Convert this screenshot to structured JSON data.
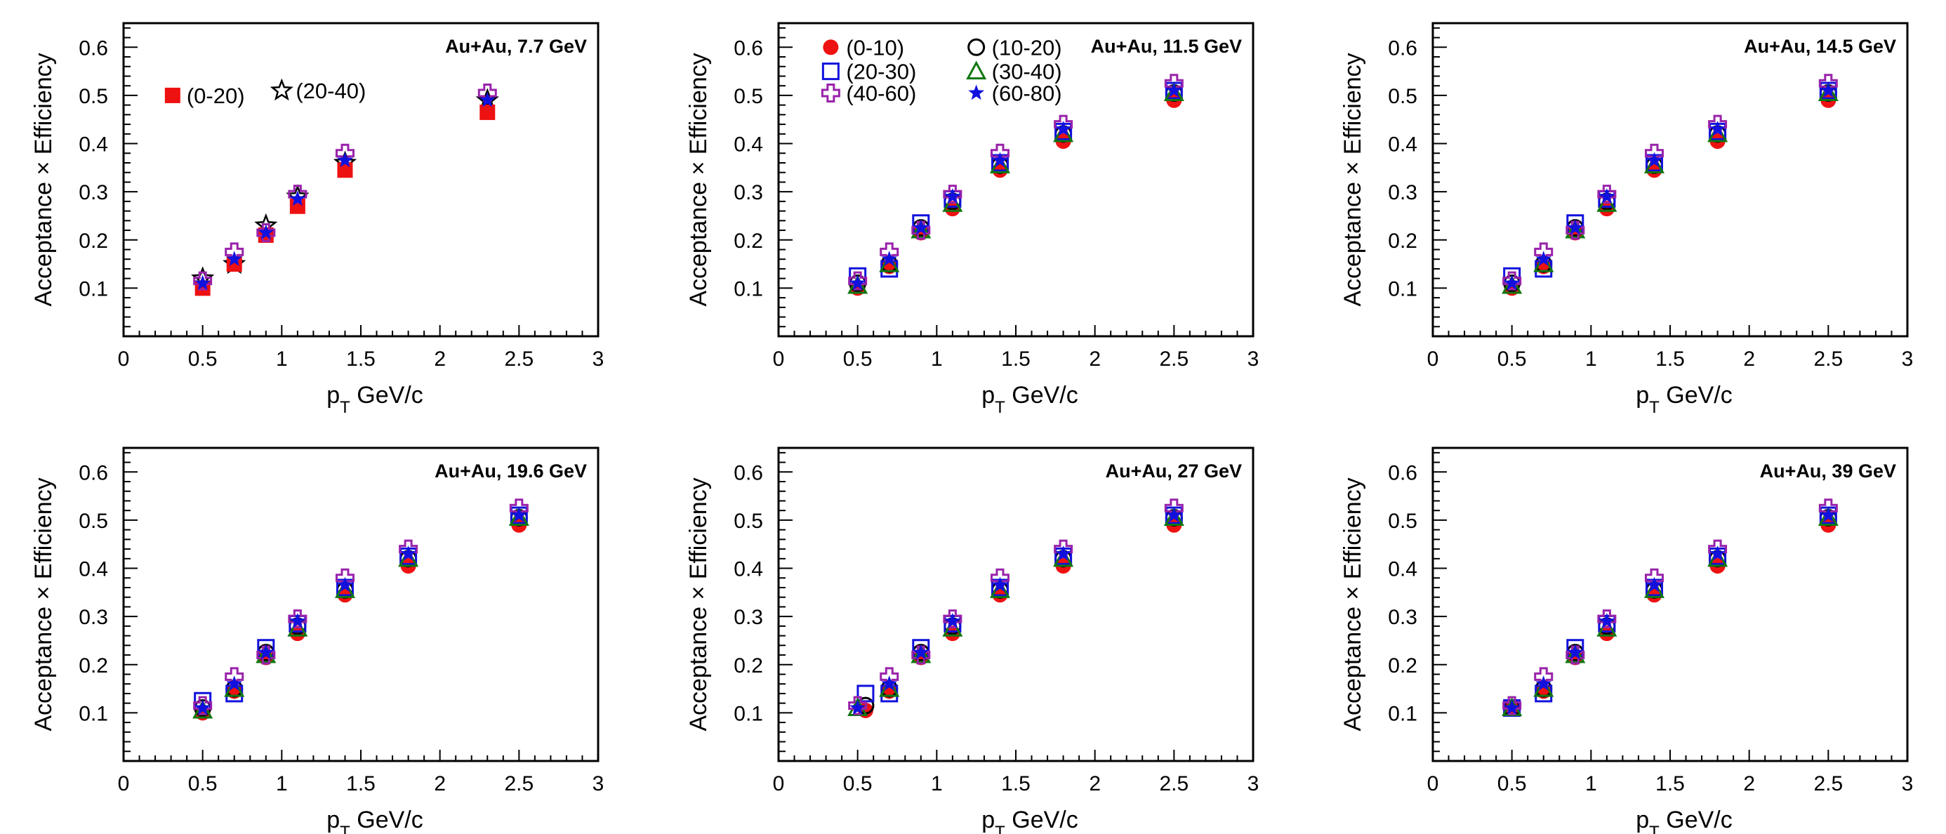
{
  "styles": {
    "0-20": {
      "shape": "square-filled",
      "color": "#ee1111"
    },
    "20-40": {
      "shape": "star-open",
      "color": "#000000"
    },
    "0-10": {
      "shape": "circle-filled",
      "color": "#ee1111"
    },
    "10-20": {
      "shape": "circle-open",
      "color": "#000000"
    },
    "20-30": {
      "shape": "square-open",
      "color": "#1111dd"
    },
    "30-40": {
      "shape": "triangle-open",
      "color": "#117711"
    },
    "40-60": {
      "shape": "cross-open",
      "color": "#9922aa"
    },
    "60-80": {
      "shape": "star-filled",
      "color": "#1111dd"
    }
  },
  "chart_data": [
    {
      "type": "scatter",
      "annotation": "Au+Au, 7.7 GeV",
      "xlabel": "p",
      "xlabel_sub": "T",
      "xlabel_unit": " GeV/c",
      "ylabel": "Acceptance × Efficiency",
      "xlim": [
        0,
        3
      ],
      "ylim": [
        0,
        0.65
      ],
      "xticks": [
        "0",
        "0.5",
        "1",
        "1.5",
        "2",
        "2.5",
        "3"
      ],
      "yticks": [
        "0.1",
        "0.2",
        "0.3",
        "0.4",
        "0.5",
        "0.6"
      ],
      "legend": [
        {
          "name": "(0-20)",
          "key": "0-20"
        },
        {
          "name": "(20-40)",
          "key": "20-40"
        }
      ],
      "series": [
        {
          "key": "20-40",
          "x": [
            0.5,
            0.7,
            0.9,
            1.1,
            1.4,
            2.3
          ],
          "y": [
            0.12,
            0.15,
            0.23,
            0.29,
            0.36,
            0.49
          ]
        },
        {
          "key": "0-20",
          "x": [
            0.5,
            0.7,
            0.9,
            1.1,
            1.4,
            2.3
          ],
          "y": [
            0.1,
            0.15,
            0.21,
            0.27,
            0.345,
            0.465
          ]
        },
        {
          "key": "40-60",
          "x": [
            0.5,
            0.7,
            0.9,
            1.1,
            1.4,
            2.3
          ],
          "y": [
            0.115,
            0.175,
            0.215,
            0.295,
            0.38,
            0.505
          ]
        },
        {
          "key": "60-80",
          "x": [
            0.5,
            0.7,
            0.9,
            1.1,
            1.4,
            2.3
          ],
          "y": [
            0.11,
            0.16,
            0.215,
            0.285,
            0.365,
            0.49
          ]
        }
      ]
    },
    {
      "type": "scatter",
      "annotation": "Au+Au, 11.5 GeV",
      "xlabel": "p",
      "xlabel_sub": "T",
      "xlabel_unit": " GeV/c",
      "ylabel": "Acceptance × Efficiency",
      "xlim": [
        0,
        3
      ],
      "ylim": [
        0,
        0.65
      ],
      "xticks": [
        "0",
        "0.5",
        "1",
        "1.5",
        "2",
        "2.5",
        "3"
      ],
      "yticks": [
        "0.1",
        "0.2",
        "0.3",
        "0.4",
        "0.5",
        "0.6"
      ],
      "legend": [
        {
          "name": "(0-10)",
          "key": "0-10"
        },
        {
          "name": "(10-20)",
          "key": "10-20"
        },
        {
          "name": "(20-30)",
          "key": "20-30"
        },
        {
          "name": "(30-40)",
          "key": "30-40"
        },
        {
          "name": "(40-60)",
          "key": "40-60"
        },
        {
          "name": "(60-80)",
          "key": "60-80"
        }
      ],
      "series": [
        {
          "key": "0-10",
          "x": [
            0.5,
            0.7,
            0.9,
            1.1,
            1.4,
            1.8,
            2.5
          ],
          "y": [
            0.1,
            0.145,
            0.215,
            0.265,
            0.345,
            0.405,
            0.49
          ]
        },
        {
          "key": "10-20",
          "x": [
            0.5,
            0.7,
            0.9,
            1.1,
            1.4,
            1.8,
            2.5
          ],
          "y": [
            0.11,
            0.15,
            0.225,
            0.28,
            0.355,
            0.42,
            0.505
          ]
        },
        {
          "key": "20-30",
          "x": [
            0.5,
            0.7,
            0.9,
            1.1,
            1.4,
            1.8,
            2.5
          ],
          "y": [
            0.125,
            0.14,
            0.235,
            0.285,
            0.36,
            0.425,
            0.51
          ]
        },
        {
          "key": "30-40",
          "x": [
            0.5,
            0.7,
            0.9,
            1.1,
            1.4,
            1.8,
            2.5
          ],
          "y": [
            0.105,
            0.15,
            0.22,
            0.275,
            0.355,
            0.42,
            0.505
          ]
        },
        {
          "key": "40-60",
          "x": [
            0.5,
            0.7,
            0.9,
            1.1,
            1.4,
            1.8,
            2.5
          ],
          "y": [
            0.115,
            0.175,
            0.22,
            0.295,
            0.38,
            0.44,
            0.525
          ]
        },
        {
          "key": "60-80",
          "x": [
            0.5,
            0.7,
            0.9,
            1.1,
            1.4,
            1.8,
            2.5
          ],
          "y": [
            0.11,
            0.16,
            0.225,
            0.29,
            0.365,
            0.43,
            0.51
          ]
        }
      ]
    },
    {
      "type": "scatter",
      "annotation": "Au+Au, 14.5 GeV",
      "xlabel": "p",
      "xlabel_sub": "T",
      "xlabel_unit": " GeV/c",
      "ylabel": "Acceptance × Efficiency",
      "xlim": [
        0,
        3
      ],
      "ylim": [
        0,
        0.65
      ],
      "xticks": [
        "0",
        "0.5",
        "1",
        "1.5",
        "2",
        "2.5",
        "3"
      ],
      "yticks": [
        "0.1",
        "0.2",
        "0.3",
        "0.4",
        "0.5",
        "0.6"
      ],
      "legend": [],
      "series": [
        {
          "key": "0-10",
          "x": [
            0.5,
            0.7,
            0.9,
            1.1,
            1.4,
            1.8,
            2.5
          ],
          "y": [
            0.1,
            0.145,
            0.215,
            0.265,
            0.345,
            0.405,
            0.49
          ]
        },
        {
          "key": "10-20",
          "x": [
            0.5,
            0.7,
            0.9,
            1.1,
            1.4,
            1.8,
            2.5
          ],
          "y": [
            0.11,
            0.15,
            0.225,
            0.28,
            0.355,
            0.42,
            0.505
          ]
        },
        {
          "key": "20-30",
          "x": [
            0.5,
            0.7,
            0.9,
            1.1,
            1.4,
            1.8,
            2.5
          ],
          "y": [
            0.125,
            0.14,
            0.235,
            0.285,
            0.36,
            0.425,
            0.51
          ]
        },
        {
          "key": "30-40",
          "x": [
            0.5,
            0.7,
            0.9,
            1.1,
            1.4,
            1.8,
            2.5
          ],
          "y": [
            0.105,
            0.15,
            0.22,
            0.275,
            0.355,
            0.42,
            0.505
          ]
        },
        {
          "key": "40-60",
          "x": [
            0.5,
            0.7,
            0.9,
            1.1,
            1.4,
            1.8,
            2.5
          ],
          "y": [
            0.115,
            0.175,
            0.22,
            0.295,
            0.38,
            0.44,
            0.525
          ]
        },
        {
          "key": "60-80",
          "x": [
            0.5,
            0.7,
            0.9,
            1.1,
            1.4,
            1.8,
            2.5
          ],
          "y": [
            0.11,
            0.16,
            0.225,
            0.29,
            0.365,
            0.43,
            0.51
          ]
        }
      ]
    },
    {
      "type": "scatter",
      "annotation": "Au+Au, 19.6 GeV",
      "xlabel": "p",
      "xlabel_sub": "T",
      "xlabel_unit": " GeV/c",
      "ylabel": "Acceptance × Efficiency",
      "xlim": [
        0,
        3
      ],
      "ylim": [
        0,
        0.65
      ],
      "xticks": [
        "0",
        "0.5",
        "1",
        "1.5",
        "2",
        "2.5",
        "3"
      ],
      "yticks": [
        "0.1",
        "0.2",
        "0.3",
        "0.4",
        "0.5",
        "0.6"
      ],
      "legend": [],
      "series": [
        {
          "key": "0-10",
          "x": [
            0.5,
            0.7,
            0.9,
            1.1,
            1.4,
            1.8,
            2.5
          ],
          "y": [
            0.1,
            0.145,
            0.215,
            0.265,
            0.345,
            0.405,
            0.49
          ]
        },
        {
          "key": "10-20",
          "x": [
            0.5,
            0.7,
            0.9,
            1.1,
            1.4,
            1.8,
            2.5
          ],
          "y": [
            0.11,
            0.15,
            0.225,
            0.28,
            0.355,
            0.42,
            0.505
          ]
        },
        {
          "key": "20-30",
          "x": [
            0.5,
            0.7,
            0.9,
            1.1,
            1.4,
            1.8,
            2.5
          ],
          "y": [
            0.125,
            0.14,
            0.235,
            0.285,
            0.36,
            0.425,
            0.51
          ]
        },
        {
          "key": "30-40",
          "x": [
            0.5,
            0.7,
            0.9,
            1.1,
            1.4,
            1.8,
            2.5
          ],
          "y": [
            0.105,
            0.15,
            0.22,
            0.275,
            0.355,
            0.42,
            0.505
          ]
        },
        {
          "key": "40-60",
          "x": [
            0.5,
            0.7,
            0.9,
            1.1,
            1.4,
            1.8,
            2.5
          ],
          "y": [
            0.115,
            0.175,
            0.22,
            0.295,
            0.38,
            0.44,
            0.525
          ]
        },
        {
          "key": "60-80",
          "x": [
            0.5,
            0.7,
            0.9,
            1.1,
            1.4,
            1.8,
            2.5
          ],
          "y": [
            0.11,
            0.16,
            0.225,
            0.29,
            0.365,
            0.43,
            0.51
          ]
        }
      ]
    },
    {
      "type": "scatter",
      "annotation": "Au+Au, 27 GeV",
      "xlabel": "p",
      "xlabel_sub": "T",
      "xlabel_unit": " GeV/c",
      "ylabel": "Acceptance × Efficiency",
      "xlim": [
        0,
        3
      ],
      "ylim": [
        0,
        0.65
      ],
      "xticks": [
        "0",
        "0.5",
        "1",
        "1.5",
        "2",
        "2.5",
        "3"
      ],
      "yticks": [
        "0.1",
        "0.2",
        "0.3",
        "0.4",
        "0.5",
        "0.6"
      ],
      "legend": [],
      "series": [
        {
          "key": "0-10",
          "x": [
            0.55,
            0.7,
            0.9,
            1.1,
            1.4,
            1.8,
            2.5
          ],
          "y": [
            0.105,
            0.145,
            0.215,
            0.265,
            0.345,
            0.405,
            0.49
          ]
        },
        {
          "key": "10-20",
          "x": [
            0.55,
            0.7,
            0.9,
            1.1,
            1.4,
            1.8,
            2.5
          ],
          "y": [
            0.115,
            0.15,
            0.225,
            0.28,
            0.355,
            0.42,
            0.505
          ]
        },
        {
          "key": "20-30",
          "x": [
            0.55,
            0.7,
            0.9,
            1.1,
            1.4,
            1.8,
            2.5
          ],
          "y": [
            0.14,
            0.14,
            0.235,
            0.285,
            0.36,
            0.425,
            0.51
          ]
        },
        {
          "key": "30-40",
          "x": [
            0.5,
            0.7,
            0.9,
            1.1,
            1.4,
            1.8,
            2.5
          ],
          "y": [
            0.11,
            0.15,
            0.22,
            0.275,
            0.355,
            0.42,
            0.505
          ]
        },
        {
          "key": "40-60",
          "x": [
            0.5,
            0.7,
            0.9,
            1.1,
            1.4,
            1.8,
            2.5
          ],
          "y": [
            0.115,
            0.175,
            0.22,
            0.295,
            0.38,
            0.44,
            0.525
          ]
        },
        {
          "key": "60-80",
          "x": [
            0.5,
            0.7,
            0.9,
            1.1,
            1.4,
            1.8,
            2.5
          ],
          "y": [
            0.11,
            0.16,
            0.225,
            0.29,
            0.365,
            0.43,
            0.51
          ]
        }
      ]
    },
    {
      "type": "scatter",
      "annotation": "Au+Au, 39 GeV",
      "xlabel": "p",
      "xlabel_sub": "T",
      "xlabel_unit": " GeV/c",
      "ylabel": "Acceptance × Efficiency",
      "xlim": [
        0,
        3
      ],
      "ylim": [
        0,
        0.65
      ],
      "xticks": [
        "0",
        "0.5",
        "1",
        "1.5",
        "2",
        "2.5",
        "3"
      ],
      "yticks": [
        "0.1",
        "0.2",
        "0.3",
        "0.4",
        "0.5",
        "0.6"
      ],
      "legend": [],
      "series": [
        {
          "key": "0-10",
          "x": [
            0.5,
            0.7,
            0.9,
            1.1,
            1.4,
            1.8,
            2.5
          ],
          "y": [
            0.11,
            0.145,
            0.215,
            0.265,
            0.345,
            0.405,
            0.49
          ]
        },
        {
          "key": "10-20",
          "x": [
            0.5,
            0.7,
            0.9,
            1.1,
            1.4,
            1.8,
            2.5
          ],
          "y": [
            0.11,
            0.15,
            0.225,
            0.28,
            0.355,
            0.42,
            0.505
          ]
        },
        {
          "key": "20-30",
          "x": [
            0.5,
            0.7,
            0.9,
            1.1,
            1.4,
            1.8,
            2.5
          ],
          "y": [
            0.11,
            0.14,
            0.235,
            0.285,
            0.36,
            0.425,
            0.51
          ]
        },
        {
          "key": "30-40",
          "x": [
            0.5,
            0.7,
            0.9,
            1.1,
            1.4,
            1.8,
            2.5
          ],
          "y": [
            0.11,
            0.15,
            0.22,
            0.275,
            0.355,
            0.42,
            0.505
          ]
        },
        {
          "key": "40-60",
          "x": [
            0.5,
            0.7,
            0.9,
            1.1,
            1.4,
            1.8,
            2.5
          ],
          "y": [
            0.115,
            0.175,
            0.22,
            0.295,
            0.38,
            0.44,
            0.525
          ]
        },
        {
          "key": "60-80",
          "x": [
            0.5,
            0.7,
            0.9,
            1.1,
            1.4,
            1.8,
            2.5
          ],
          "y": [
            0.11,
            0.16,
            0.225,
            0.29,
            0.365,
            0.43,
            0.51
          ]
        }
      ]
    }
  ]
}
